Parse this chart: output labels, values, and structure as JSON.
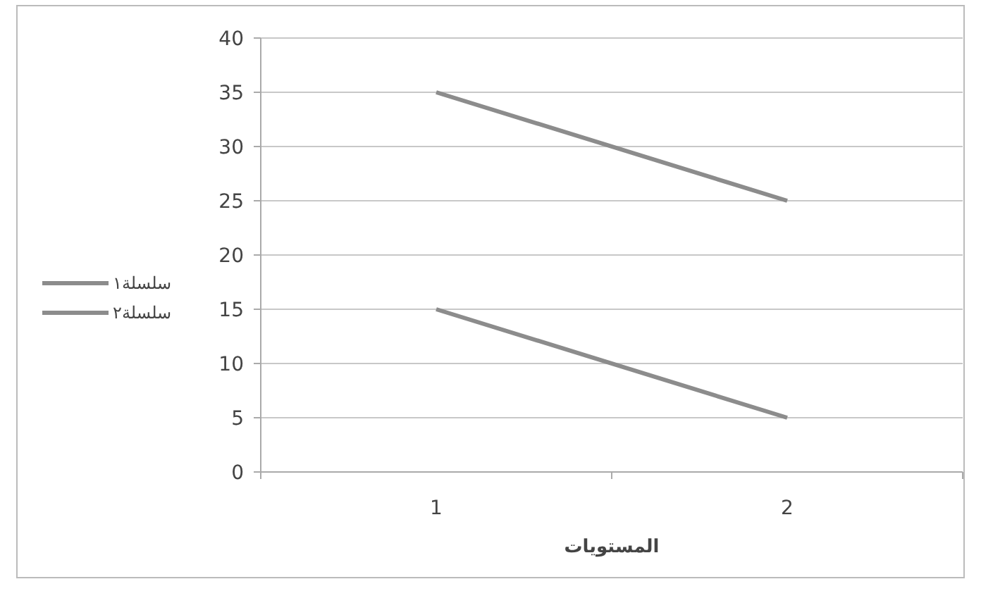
{
  "chart_data": {
    "type": "line",
    "xlabel": "المستويات",
    "categories": [
      "1",
      "2"
    ],
    "series": [
      {
        "name": "سلسلة١",
        "color": "#8c8c8c",
        "values": [
          35,
          25
        ]
      },
      {
        "name": "سلسلة٢",
        "color": "#8c8c8c",
        "values": [
          15,
          5
        ]
      }
    ],
    "ylim": [
      0,
      40
    ],
    "yticks": [
      0,
      5,
      10,
      15,
      20,
      25,
      30,
      35,
      40
    ],
    "grid": "y",
    "legend": "left",
    "marker": "none",
    "line_style": "solid"
  }
}
